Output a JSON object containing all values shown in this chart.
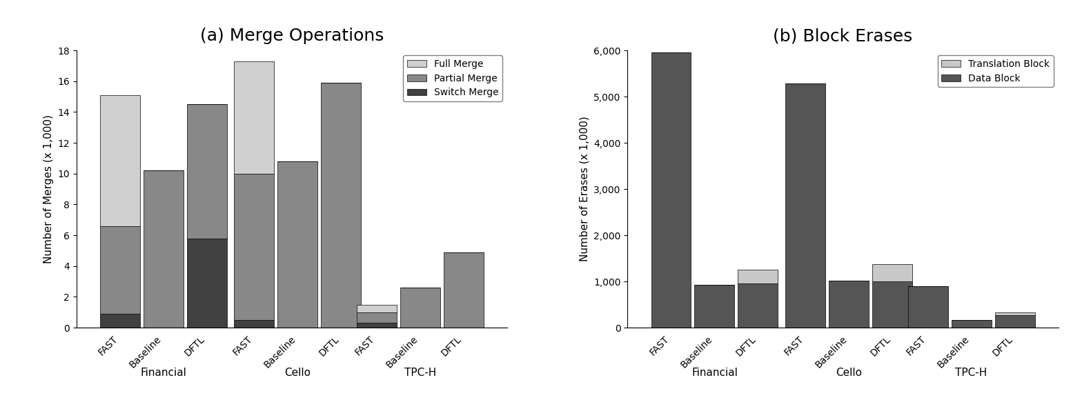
{
  "chart_a": {
    "title": "(a) Merge Operations",
    "ylabel": "Number of Merges (x 1,000)",
    "ylim": [
      0,
      18
    ],
    "yticks": [
      0,
      2,
      4,
      6,
      8,
      10,
      12,
      14,
      16,
      18
    ],
    "groups": [
      "Financial",
      "Cello",
      "TPC-H"
    ],
    "schemes": [
      "FAST",
      "Baseline",
      "DFTL"
    ],
    "full_merge": [
      8.5,
      0,
      0,
      7.3,
      0,
      0,
      0.5,
      0,
      0
    ],
    "partial_merge": [
      5.7,
      10.2,
      8.7,
      9.5,
      10.8,
      15.9,
      0.7,
      2.6,
      4.9
    ],
    "switch_merge": [
      0.9,
      0,
      5.8,
      0.5,
      0,
      0,
      0.3,
      0,
      0
    ],
    "color_full": "#d0d0d0",
    "color_partial": "#888888",
    "color_switch": "#404040",
    "legend_labels": [
      "Full Merge",
      "Partial Merge",
      "Switch Merge"
    ]
  },
  "chart_b": {
    "title": "(b) Block Erases",
    "ylabel": "Number of Erases (x 1,000)",
    "ylim": [
      0,
      6000
    ],
    "yticks": [
      0,
      1000,
      2000,
      3000,
      4000,
      5000,
      6000
    ],
    "groups": [
      "Financial",
      "Cello",
      "TPC-H"
    ],
    "schemes": [
      "FAST",
      "Baseline",
      "DFTL"
    ],
    "translation_block": [
      0,
      0,
      300,
      0,
      0,
      380,
      0,
      0,
      50
    ],
    "data_block": [
      5950,
      930,
      950,
      5280,
      1010,
      1000,
      900,
      170,
      275
    ],
    "color_translation": "#c8c8c8",
    "color_data": "#555555",
    "legend_labels": [
      "Translation Block",
      "Data Block"
    ]
  },
  "bar_width": 0.22,
  "fontsize_title": 18,
  "fontsize_label": 11,
  "fontsize_tick": 10,
  "fontsize_legend": 10,
  "fontsize_group_label": 11,
  "group_centers": [
    0.0,
    0.68,
    1.3
  ]
}
